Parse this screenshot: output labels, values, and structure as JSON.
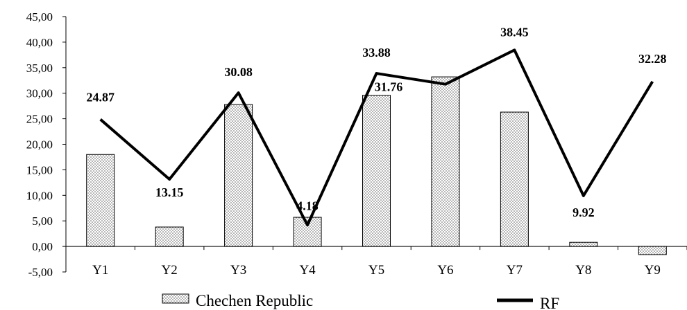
{
  "chart_data": {
    "type": "bar",
    "categories": [
      "Y1",
      "Y2",
      "Y3",
      "Y4",
      "Y5",
      "Y6",
      "Y7",
      "Y8",
      "Y9"
    ],
    "series": [
      {
        "name": "Chechen Republic",
        "type": "bar",
        "pattern": "dotted",
        "values": [
          18.0,
          3.8,
          27.8,
          5.7,
          29.6,
          33.2,
          26.3,
          0.8,
          -1.6
        ]
      },
      {
        "name": "RF",
        "type": "line",
        "color": "#000000",
        "values": [
          24.87,
          13.15,
          30.08,
          4.18,
          33.88,
          31.76,
          38.45,
          9.92,
          32.28
        ],
        "data_labels": [
          "24.87",
          "13.15",
          "30.08",
          "4.18",
          "33.88",
          "31.76",
          "38.45",
          "9.92",
          "32.28"
        ]
      }
    ],
    "y_tick_labels": [
      "-5,00",
      "0,00",
      "5,00",
      "10,00",
      "15,00",
      "20,00",
      "25,00",
      "30,00",
      "35,00",
      "40,00",
      "45,00"
    ],
    "ylim": [
      -5,
      45
    ],
    "title": "",
    "xlabel": "",
    "ylabel": "",
    "grid": false,
    "legend_position": "bottom"
  }
}
